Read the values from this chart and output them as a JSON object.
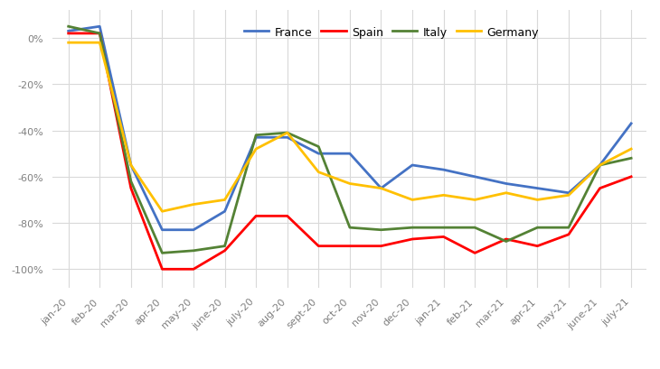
{
  "months": [
    "jan-20",
    "feb-20",
    "mar-20",
    "apr-20",
    "may-20",
    "june-20",
    "july-20",
    "aug-20",
    "sept-20",
    "oct-20",
    "nov-20",
    "dec-20",
    "jan-21",
    "feb-21",
    "mar-21",
    "apr-21",
    "may-21",
    "june-21",
    "july-21"
  ],
  "France": [
    3,
    5,
    -55,
    -83,
    -83,
    -75,
    -43,
    -43,
    -50,
    -50,
    -65,
    -55,
    -57,
    -60,
    -63,
    -65,
    -67,
    -55,
    -37
  ],
  "Spain": [
    2,
    2,
    -65,
    -100,
    -100,
    -92,
    -77,
    -77,
    -90,
    -90,
    -90,
    -87,
    -86,
    -93,
    -87,
    -90,
    -85,
    -65,
    -60
  ],
  "Italy": [
    5,
    2,
    -62,
    -93,
    -92,
    -90,
    -42,
    -41,
    -47,
    -82,
    -83,
    -82,
    -82,
    -82,
    -88,
    -82,
    -82,
    -55,
    -52
  ],
  "Germany": [
    -2,
    -2,
    -55,
    -75,
    -72,
    -70,
    -48,
    -41,
    -58,
    -63,
    -65,
    -70,
    -68,
    -70,
    -67,
    -70,
    -68,
    -55,
    -48
  ],
  "colors": {
    "France": "#4472C4",
    "Spain": "#FF0000",
    "Italy": "#548235",
    "Germany": "#FFC000"
  },
  "ylim": [
    -108,
    12
  ],
  "yticks": [
    0,
    -20,
    -40,
    -60,
    -80,
    -100
  ],
  "background_color": "#FFFFFF",
  "grid_color": "#D9D9D9",
  "linewidth": 2.0,
  "tick_color": "#808080",
  "tick_fontsize": 8,
  "legend_fontsize": 9
}
